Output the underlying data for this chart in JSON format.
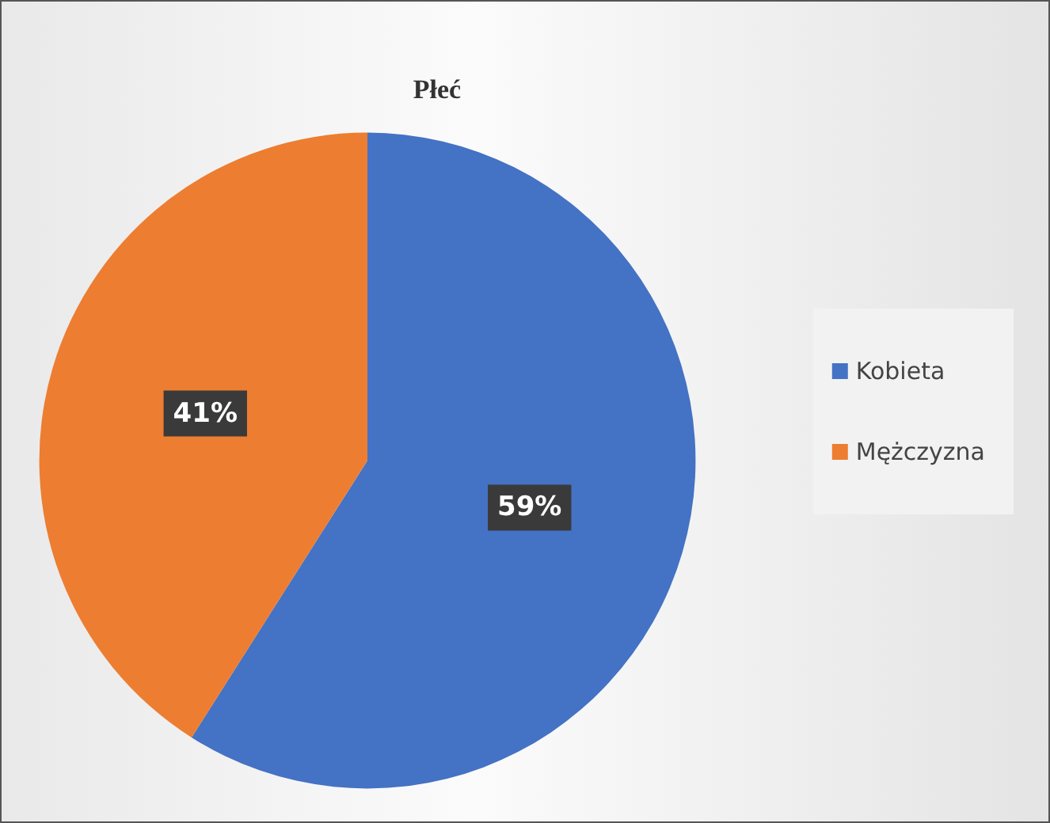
{
  "chart_data": {
    "type": "pie",
    "title": "Płeć",
    "categories": [
      "Kobieta",
      "Mężczyzna"
    ],
    "values": [
      59,
      41
    ],
    "colors": [
      "#4472c4",
      "#ed7d31"
    ],
    "value_labels": [
      "59%",
      "41%"
    ],
    "legend": "right"
  }
}
